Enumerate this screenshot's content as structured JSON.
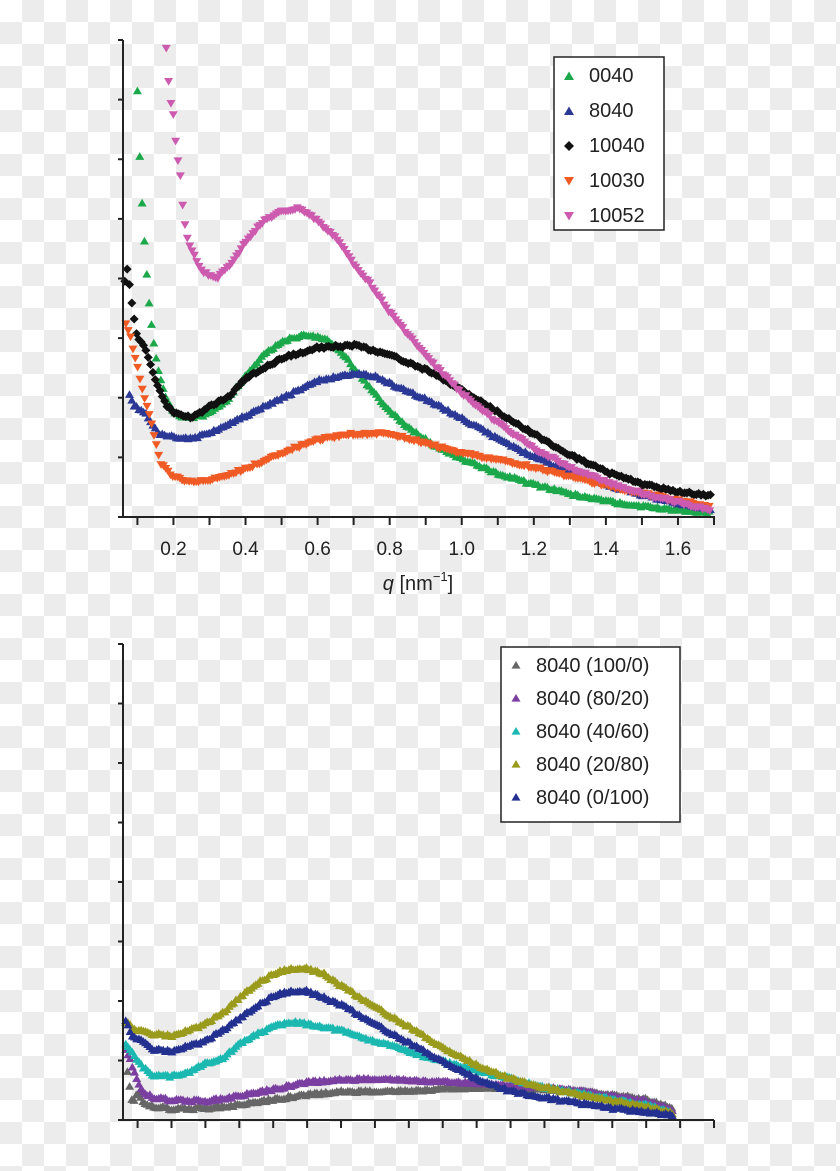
{
  "chart_data": [
    {
      "type": "scatter",
      "panel": "top",
      "title": "",
      "xlabel_var": "q",
      "xlabel_unit": "[nm",
      "xlabel_exp": "−1",
      "xlabel_close": "]",
      "ylabel": "",
      "xlim": [
        0.06,
        1.7
      ],
      "ylim": [
        0,
        8
      ],
      "y_tick_labels_shown": false,
      "x_ticks": [
        "0.2",
        "0.4",
        "0.6",
        "0.8",
        "1.0",
        "1.2",
        "1.4",
        "1.6"
      ],
      "grid": false,
      "legend_placement": "top-right",
      "series": [
        {
          "name": "0040",
          "marker": "triangle-up",
          "color": "#1aa84a",
          "x": [
            0.1,
            0.105,
            0.116,
            0.123,
            0.132,
            0.14,
            0.148,
            0.157,
            0.165,
            0.176,
            0.2,
            0.236,
            0.28,
            0.345,
            0.4,
            0.455,
            0.51,
            0.565,
            0.62,
            0.674,
            0.73,
            0.784,
            0.85,
            0.926,
            1.0,
            1.09,
            1.2,
            1.31,
            1.42,
            1.53,
            1.69
          ],
          "y": [
            7.13,
            6.23,
            4.9,
            4.34,
            3.6,
            3.17,
            2.8,
            2.5,
            2.29,
            2.04,
            1.76,
            1.66,
            1.7,
            1.94,
            2.38,
            2.75,
            2.97,
            3.06,
            3.0,
            2.72,
            2.29,
            1.88,
            1.51,
            1.2,
            0.98,
            0.76,
            0.55,
            0.38,
            0.25,
            0.16,
            0.08
          ]
        },
        {
          "name": "8040",
          "marker": "triangle-up",
          "color": "#2b3896",
          "x": [
            0.078,
            0.09,
            0.12,
            0.14,
            0.16,
            0.2,
            0.25,
            0.3,
            0.4,
            0.5,
            0.6,
            0.7,
            0.75,
            0.8,
            0.9,
            1.0,
            1.1,
            1.2,
            1.3,
            1.4,
            1.5,
            1.6,
            1.69
          ],
          "y": [
            2.07,
            1.88,
            1.76,
            1.57,
            1.39,
            1.35,
            1.32,
            1.42,
            1.7,
            2.0,
            2.29,
            2.41,
            2.38,
            2.25,
            1.98,
            1.66,
            1.32,
            1.01,
            0.76,
            0.55,
            0.38,
            0.24,
            0.14
          ]
        },
        {
          "name": "10040",
          "marker": "diamond",
          "color": "#111111",
          "x": [
            0.065,
            0.072,
            0.09,
            0.1,
            0.12,
            0.14,
            0.16,
            0.18,
            0.2,
            0.25,
            0.3,
            0.35,
            0.4,
            0.5,
            0.6,
            0.7,
            0.8,
            0.9,
            1.0,
            1.1,
            1.2,
            1.3,
            1.4,
            1.5,
            1.6,
            1.69
          ],
          "y": [
            3.96,
            4.15,
            3.37,
            3.0,
            2.84,
            2.5,
            2.13,
            1.88,
            1.76,
            1.66,
            1.85,
            2.0,
            2.32,
            2.66,
            2.84,
            2.88,
            2.72,
            2.47,
            2.13,
            1.76,
            1.39,
            1.04,
            0.76,
            0.55,
            0.42,
            0.36
          ]
        },
        {
          "name": "10030",
          "marker": "triangle-down",
          "color": "#f05a24",
          "x": [
            0.068,
            0.08,
            0.1,
            0.12,
            0.14,
            0.155,
            0.165,
            0.2,
            0.25,
            0.3,
            0.4,
            0.5,
            0.6,
            0.7,
            0.8,
            0.9,
            1.0,
            1.1,
            1.2,
            1.3,
            1.4,
            1.5,
            1.6,
            1.69
          ],
          "y": [
            3.22,
            3.03,
            2.5,
            2.0,
            1.54,
            1.14,
            0.89,
            0.67,
            0.58,
            0.61,
            0.8,
            1.07,
            1.29,
            1.39,
            1.39,
            1.23,
            1.07,
            0.95,
            0.83,
            0.67,
            0.52,
            0.39,
            0.27,
            0.17
          ]
        },
        {
          "name": "10052",
          "marker": "triangle-down",
          "color": "#cc5aae",
          "x": [
            0.18,
            0.19,
            0.2,
            0.21,
            0.22,
            0.225,
            0.235,
            0.25,
            0.28,
            0.32,
            0.36,
            0.4,
            0.45,
            0.5,
            0.55,
            0.6,
            0.65,
            0.7,
            0.75,
            0.8,
            0.85,
            0.9,
            0.95,
            1.0,
            1.1,
            1.2,
            1.3,
            1.4,
            1.5,
            1.6,
            1.69
          ],
          "y": [
            7.84,
            7.0,
            6.73,
            6.04,
            5.7,
            5.24,
            4.74,
            4.46,
            4.12,
            3.99,
            4.24,
            4.61,
            4.96,
            5.11,
            5.17,
            4.96,
            4.68,
            4.24,
            3.87,
            3.43,
            3.06,
            2.69,
            2.38,
            2.07,
            1.57,
            1.14,
            0.83,
            0.58,
            0.39,
            0.24,
            0.11
          ]
        }
      ]
    },
    {
      "type": "scatter",
      "panel": "bottom",
      "title": "",
      "xlabel": "",
      "ylabel": "",
      "xlim": [
        0.057,
        1.8
      ],
      "ylim": [
        0,
        8
      ],
      "x_tick_labels_shown": false,
      "y_tick_labels_shown": false,
      "grid": false,
      "legend_placement": "top-right",
      "series": [
        {
          "name": "8040 (100/0)",
          "marker": "triangle-up",
          "color": "#666666",
          "x": [
            0.07,
            0.084,
            0.1,
            0.12,
            0.15,
            0.2,
            0.3,
            0.4,
            0.5,
            0.6,
            0.7,
            0.8,
            0.9,
            1.0,
            1.1,
            1.2,
            1.3,
            1.4,
            1.5,
            1.6,
            1.68
          ],
          "y": [
            0.82,
            0.29,
            0.46,
            0.29,
            0.23,
            0.19,
            0.2,
            0.26,
            0.35,
            0.43,
            0.48,
            0.49,
            0.49,
            0.52,
            0.55,
            0.55,
            0.52,
            0.49,
            0.43,
            0.35,
            0.2
          ]
        },
        {
          "name": "8040 (80/20)",
          "marker": "triangle-up",
          "color": "#7a3fa0",
          "x": [
            0.065,
            0.08,
            0.1,
            0.12,
            0.15,
            0.2,
            0.3,
            0.4,
            0.5,
            0.6,
            0.7,
            0.8,
            0.9,
            1.0,
            1.1,
            1.2,
            1.3,
            1.4,
            1.5,
            1.6,
            1.68
          ],
          "y": [
            1.19,
            0.99,
            0.64,
            0.46,
            0.38,
            0.34,
            0.32,
            0.41,
            0.52,
            0.64,
            0.68,
            0.7,
            0.67,
            0.64,
            0.63,
            0.59,
            0.55,
            0.49,
            0.41,
            0.32,
            0.17
          ]
        },
        {
          "name": "8040 (40/60)",
          "marker": "triangle-up",
          "color": "#1ab8b0",
          "x": [
            0.065,
            0.08,
            0.1,
            0.12,
            0.15,
            0.2,
            0.25,
            0.3,
            0.35,
            0.4,
            0.45,
            0.5,
            0.55,
            0.6,
            0.65,
            0.7,
            0.8,
            0.9,
            1.0,
            1.1,
            1.2,
            1.3,
            1.4,
            1.5,
            1.6,
            1.68
          ],
          "y": [
            1.3,
            1.19,
            0.99,
            0.87,
            0.75,
            0.74,
            0.81,
            0.96,
            1.04,
            1.28,
            1.45,
            1.57,
            1.65,
            1.62,
            1.57,
            1.51,
            1.33,
            1.16,
            0.99,
            0.84,
            0.7,
            0.55,
            0.46,
            0.35,
            0.26,
            0.12
          ]
        },
        {
          "name": "8040 (20/80)",
          "marker": "triangle-up",
          "color": "#9a9a1c",
          "x": [
            0.065,
            0.08,
            0.1,
            0.15,
            0.2,
            0.25,
            0.3,
            0.35,
            0.4,
            0.45,
            0.5,
            0.55,
            0.6,
            0.65,
            0.7,
            0.8,
            0.9,
            1.0,
            1.1,
            1.2,
            1.3,
            1.4,
            1.5,
            1.6,
            1.68
          ],
          "y": [
            1.65,
            1.59,
            1.51,
            1.45,
            1.42,
            1.51,
            1.62,
            1.8,
            2.06,
            2.29,
            2.46,
            2.55,
            2.55,
            2.46,
            2.26,
            1.91,
            1.57,
            1.22,
            0.93,
            0.7,
            0.55,
            0.43,
            0.32,
            0.23,
            0.12
          ]
        },
        {
          "name": "8040 (0/100)",
          "marker": "triangle-up",
          "color": "#23308f",
          "x": [
            0.065,
            0.08,
            0.12,
            0.15,
            0.2,
            0.25,
            0.3,
            0.35,
            0.4,
            0.45,
            0.5,
            0.55,
            0.6,
            0.65,
            0.7,
            0.8,
            0.9,
            1.0,
            1.1,
            1.2,
            1.3,
            1.4,
            1.5,
            1.6,
            1.68
          ],
          "y": [
            1.68,
            1.45,
            1.3,
            1.19,
            1.16,
            1.25,
            1.33,
            1.51,
            1.71,
            1.91,
            2.09,
            2.17,
            2.17,
            2.06,
            1.94,
            1.62,
            1.3,
            0.99,
            0.7,
            0.49,
            0.38,
            0.29,
            0.2,
            0.14,
            0.09
          ]
        }
      ]
    }
  ]
}
